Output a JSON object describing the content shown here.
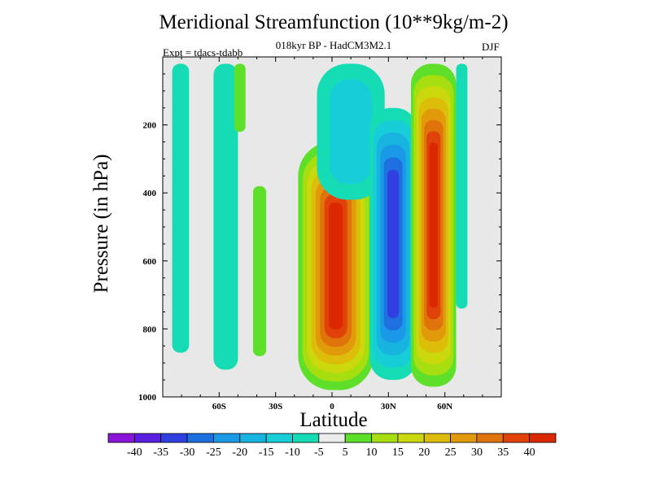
{
  "chart_data": {
    "type": "contour",
    "title": "Meridional Streamfunction (10**9kg/m-2)",
    "subtitle": "018kyr BP - HadCM3M2.1",
    "expt_label": "Expt = tdacs-tdabb",
    "season": "DJF",
    "xlabel": "Latitude",
    "ylabel": "Pressure (in hPa)",
    "xlim": [
      -90,
      90
    ],
    "ylim": [
      1000,
      0
    ],
    "x_ticks": [
      {
        "value": -60,
        "label": "60S"
      },
      {
        "value": -30,
        "label": "30S"
      },
      {
        "value": 0,
        "label": "0"
      },
      {
        "value": 30,
        "label": "30N"
      },
      {
        "value": 60,
        "label": "60N"
      }
    ],
    "y_ticks": [
      {
        "value": 200,
        "label": "200"
      },
      {
        "value": 400,
        "label": "400"
      },
      {
        "value": 600,
        "label": "600"
      },
      {
        "value": 800,
        "label": "800"
      },
      {
        "value": 1000,
        "label": "1000"
      }
    ],
    "colorbar_levels": [
      "-40",
      "-35",
      "-30",
      "-25",
      "-20",
      "-15",
      "-10",
      "-5",
      "5",
      "10",
      "15",
      "20",
      "25",
      "30",
      "35",
      "40"
    ],
    "colorbar_colors": [
      "#8a14d8",
      "#5a1ee0",
      "#2f3fe0",
      "#1e6fe0",
      "#1a9ae6",
      "#18b4e0",
      "#16cdd8",
      "#15dcb4",
      "#ececec",
      "#5ee02a",
      "#a6de10",
      "#cad80c",
      "#dcbd0a",
      "#e09a0a",
      "#e0740a",
      "#e0420a",
      "#dc2800"
    ],
    "background_color": "#e8e8e8",
    "features": [
      {
        "name": "southern-polar-band",
        "lat_range": [
          -85,
          -76
        ],
        "p_range": [
          20,
          870
        ],
        "value": -7
      },
      {
        "name": "southern-midlat-band",
        "lat_range": [
          -63,
          -50
        ],
        "p_range": [
          20,
          920
        ],
        "value": -7
      },
      {
        "name": "southern-positive-strip",
        "lat_range": [
          -52,
          -46
        ],
        "p_range": [
          20,
          220
        ],
        "value": 8
      },
      {
        "name": "subtropical-positive-band",
        "lat_range": [
          -42,
          -35
        ],
        "p_range": [
          380,
          880
        ],
        "value": 8
      },
      {
        "name": "southern-hadley-cell",
        "lat_range": [
          -18,
          22
        ],
        "p_range": [
          250,
          980
        ],
        "value": 42
      },
      {
        "name": "tropical-upper-negative",
        "lat_range": [
          -8,
          28
        ],
        "p_range": [
          20,
          420
        ],
        "value": -12
      },
      {
        "name": "northern-negative-cell",
        "lat_range": [
          20,
          45
        ],
        "p_range": [
          150,
          950
        ],
        "value": -32
      },
      {
        "name": "northern-positive-cell",
        "lat_range": [
          42,
          66
        ],
        "p_range": [
          20,
          970
        ],
        "value": 42
      },
      {
        "name": "northern-polar-band",
        "lat_range": [
          66,
          72
        ],
        "p_range": [
          20,
          740
        ],
        "value": -7
      }
    ]
  }
}
